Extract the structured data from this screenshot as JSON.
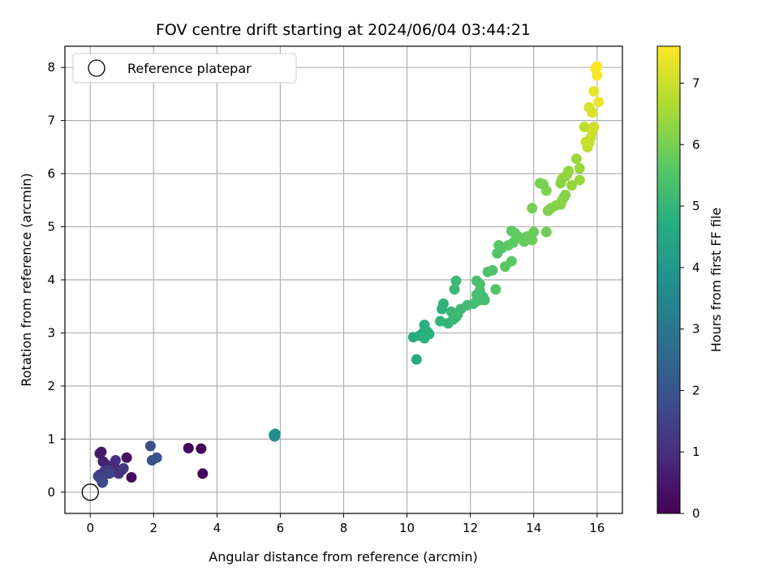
{
  "chart_data": {
    "type": "scatter",
    "title": "FOV centre drift starting at 2024/06/04 03:44:21",
    "xlabel": "Angular distance from reference (arcmin)",
    "ylabel": "Rotation from reference (arcmin)",
    "colorbar_label": "Hours from first FF file",
    "colormap": "viridis",
    "colorbar_range": [
      0,
      7.6
    ],
    "colorbar_ticks": [
      "0",
      "1",
      "2",
      "3",
      "4",
      "5",
      "6",
      "7"
    ],
    "xlim": [
      -0.8,
      16.8
    ],
    "ylim": [
      -0.4,
      8.4
    ],
    "xticks": [
      "0",
      "2",
      "4",
      "6",
      "8",
      "10",
      "12",
      "14",
      "16"
    ],
    "yticks": [
      "0",
      "1",
      "2",
      "3",
      "4",
      "5",
      "6",
      "7",
      "8"
    ],
    "grid": true,
    "legend": {
      "position": "top-left",
      "entries": [
        "Reference platepar"
      ]
    },
    "reference_point": {
      "x": 0,
      "y": 0
    },
    "points": [
      [
        3.5,
        0.82,
        0.05
      ],
      [
        3.1,
        0.83,
        0.1
      ],
      [
        3.55,
        0.35,
        0.15
      ],
      [
        1.3,
        0.28,
        0.25
      ],
      [
        1.15,
        0.65,
        0.35
      ],
      [
        0.3,
        0.73,
        0.45
      ],
      [
        0.35,
        0.76,
        0.5
      ],
      [
        0.4,
        0.58,
        0.6
      ],
      [
        0.5,
        0.52,
        0.7
      ],
      [
        0.6,
        0.48,
        0.8
      ],
      [
        0.75,
        0.5,
        0.9
      ],
      [
        0.8,
        0.6,
        1.0
      ],
      [
        0.7,
        0.38,
        1.05
      ],
      [
        0.9,
        0.35,
        1.1
      ],
      [
        1.0,
        0.42,
        1.15
      ],
      [
        1.05,
        0.45,
        1.2
      ],
      [
        0.55,
        0.42,
        1.25
      ],
      [
        0.45,
        0.4,
        1.3
      ],
      [
        0.3,
        0.33,
        1.35
      ],
      [
        0.25,
        0.3,
        1.4
      ],
      [
        0.35,
        0.25,
        1.45
      ],
      [
        0.4,
        0.2,
        1.5
      ],
      [
        0.3,
        0.27,
        1.55
      ],
      [
        0.6,
        0.35,
        1.6
      ],
      [
        0.38,
        0.18,
        1.7
      ],
      [
        1.9,
        0.87,
        1.8
      ],
      [
        1.95,
        0.6,
        1.85
      ],
      [
        2.1,
        0.65,
        1.9
      ],
      [
        5.8,
        1.08,
        3.7
      ],
      [
        5.82,
        1.05,
        3.72
      ],
      [
        5.84,
        1.1,
        3.75
      ],
      [
        10.3,
        2.5,
        4.6
      ],
      [
        10.2,
        2.92,
        4.65
      ],
      [
        10.4,
        2.95,
        4.7
      ],
      [
        10.5,
        3.0,
        4.72
      ],
      [
        10.55,
        3.15,
        4.74
      ],
      [
        10.6,
        2.98,
        4.76
      ],
      [
        10.65,
        3.02,
        4.78
      ],
      [
        10.55,
        2.9,
        4.8
      ],
      [
        10.7,
        2.98,
        4.82
      ],
      [
        11.1,
        3.45,
        4.85
      ],
      [
        11.15,
        3.55,
        4.9
      ],
      [
        11.05,
        3.22,
        4.95
      ],
      [
        11.3,
        3.18,
        5.0
      ],
      [
        11.45,
        3.25,
        5.02
      ],
      [
        11.55,
        3.3,
        5.04
      ],
      [
        11.4,
        3.4,
        5.06
      ],
      [
        11.5,
        3.82,
        5.1
      ],
      [
        11.55,
        3.98,
        5.12
      ],
      [
        11.6,
        3.35,
        5.15
      ],
      [
        11.7,
        3.45,
        5.18
      ],
      [
        11.9,
        3.52,
        5.2
      ],
      [
        12.1,
        3.55,
        5.22
      ],
      [
        12.2,
        3.6,
        5.24
      ],
      [
        12.3,
        3.62,
        5.26
      ],
      [
        12.4,
        3.68,
        5.28
      ],
      [
        12.45,
        3.62,
        5.3
      ],
      [
        12.2,
        3.72,
        5.32
      ],
      [
        12.3,
        3.8,
        5.34
      ],
      [
        12.2,
        3.98,
        5.36
      ],
      [
        12.3,
        3.92,
        5.38
      ],
      [
        12.55,
        4.15,
        5.42
      ],
      [
        12.7,
        4.18,
        5.45
      ],
      [
        12.8,
        3.82,
        5.48
      ],
      [
        12.85,
        4.5,
        5.5
      ],
      [
        13.0,
        4.6,
        5.55
      ],
      [
        12.9,
        4.65,
        5.58
      ],
      [
        13.1,
        4.25,
        5.6
      ],
      [
        13.2,
        4.65,
        5.62
      ],
      [
        13.3,
        4.35,
        5.64
      ],
      [
        13.35,
        4.7,
        5.66
      ],
      [
        13.3,
        4.92,
        5.7
      ],
      [
        13.4,
        4.88,
        5.72
      ],
      [
        13.5,
        4.82,
        5.74
      ],
      [
        13.6,
        4.78,
        5.76
      ],
      [
        13.7,
        4.72,
        5.78
      ],
      [
        13.8,
        4.82,
        5.8
      ],
      [
        13.9,
        4.78,
        5.82
      ],
      [
        14.0,
        4.9,
        5.84
      ],
      [
        13.95,
        4.75,
        5.86
      ],
      [
        14.4,
        4.9,
        5.9
      ],
      [
        13.95,
        5.35,
        5.95
      ],
      [
        14.2,
        5.82,
        6.0
      ],
      [
        14.3,
        5.8,
        6.05
      ],
      [
        14.4,
        5.68,
        6.08
      ],
      [
        14.45,
        5.3,
        6.1
      ],
      [
        14.55,
        5.35,
        6.12
      ],
      [
        14.7,
        5.4,
        6.14
      ],
      [
        14.85,
        5.42,
        6.16
      ],
      [
        14.9,
        5.5,
        6.18
      ],
      [
        14.95,
        5.55,
        6.2
      ],
      [
        15.0,
        5.6,
        6.22
      ],
      [
        14.85,
        5.82,
        6.24
      ],
      [
        14.9,
        5.9,
        6.26
      ],
      [
        15.0,
        5.95,
        6.28
      ],
      [
        15.1,
        6.05,
        6.3
      ],
      [
        15.05,
        5.98,
        6.32
      ],
      [
        15.2,
        5.78,
        6.35
      ],
      [
        15.45,
        5.88,
        6.4
      ],
      [
        15.45,
        6.1,
        6.42
      ],
      [
        15.35,
        6.28,
        6.45
      ],
      [
        15.6,
        6.88,
        6.8
      ],
      [
        15.7,
        6.5,
        6.85
      ],
      [
        15.75,
        6.58,
        6.9
      ],
      [
        15.65,
        6.6,
        6.92
      ],
      [
        15.8,
        6.68,
        6.95
      ],
      [
        15.85,
        6.8,
        7.0
      ],
      [
        15.9,
        6.88,
        7.05
      ],
      [
        15.75,
        7.25,
        7.15
      ],
      [
        15.85,
        7.15,
        7.2
      ],
      [
        15.9,
        7.55,
        7.3
      ],
      [
        16.05,
        7.35,
        7.4
      ],
      [
        15.95,
        7.98,
        7.5
      ],
      [
        16.0,
        7.85,
        7.55
      ],
      [
        16.0,
        8.02,
        7.6
      ]
    ]
  }
}
